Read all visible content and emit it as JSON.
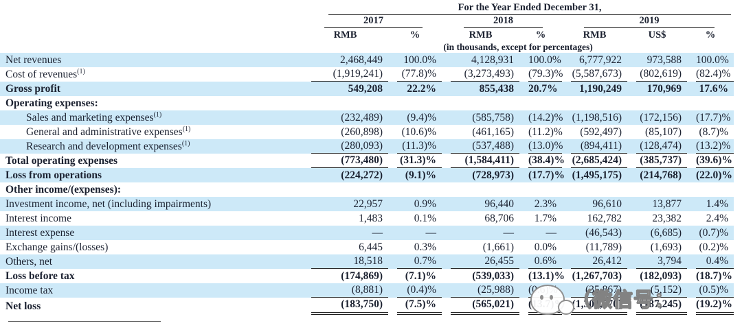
{
  "table": {
    "title": "For the Year Ended December 31,",
    "unit_note": "(in thousands, except for percentages)",
    "year_groups": [
      {
        "year": "2017",
        "cols": [
          "RMB",
          "%"
        ]
      },
      {
        "year": "2018",
        "cols": [
          "RMB",
          "%"
        ]
      },
      {
        "year": "2019",
        "cols": [
          "RMB",
          "US$",
          "%"
        ]
      }
    ],
    "rows": [
      {
        "label": "Net revenues",
        "sup": "",
        "bold": false,
        "indent": false,
        "shade": true,
        "rule": "none",
        "values": [
          "2,468,449",
          "100.0%",
          "4,128,931",
          "100.0%",
          "6,777,922",
          "973,588",
          "100.0%"
        ]
      },
      {
        "label": "Cost of revenues",
        "sup": "(1)",
        "bold": false,
        "indent": false,
        "shade": false,
        "rule": "single",
        "values": [
          "(1,919,241)",
          "(77.8)%",
          "(3,273,493)",
          "(79.3)%",
          "(5,587,673)",
          "(802,619)",
          "(82.4)%"
        ]
      },
      {
        "label": "Gross profit",
        "sup": "",
        "bold": true,
        "indent": false,
        "shade": true,
        "rule": "none",
        "values": [
          "549,208",
          "22.2%",
          "855,438",
          "20.7%",
          "1,190,249",
          "170,969",
          "17.6%"
        ]
      },
      {
        "label": "Operating expenses:",
        "sup": "",
        "bold": true,
        "indent": false,
        "shade": false,
        "rule": "none",
        "values": [
          "",
          "",
          "",
          "",
          "",
          "",
          ""
        ]
      },
      {
        "label": "Sales and marketing expenses",
        "sup": "(1)",
        "bold": false,
        "indent": true,
        "shade": true,
        "rule": "none",
        "values": [
          "(232,489)",
          "(9.4)%",
          "(585,758)",
          "(14.2)%",
          "(1,198,516)",
          "(172,156)",
          "(17.7)%"
        ]
      },
      {
        "label": "General and administrative expenses",
        "sup": "(1)",
        "bold": false,
        "indent": true,
        "shade": false,
        "rule": "none",
        "values": [
          "(260,898)",
          "(10.6)%",
          "(461,165)",
          "(11.2)%",
          "(592,497)",
          "(85,107)",
          "(8.7)%"
        ]
      },
      {
        "label": "Research and development expenses",
        "sup": "(1)",
        "bold": false,
        "indent": true,
        "shade": true,
        "rule": "single",
        "values": [
          "(280,093)",
          "(11.3)%",
          "(537,488)",
          "(13.0)%",
          "(894,411)",
          "(128,474)",
          "(13.2)%"
        ]
      },
      {
        "label": "Total operating expenses",
        "sup": "",
        "bold": true,
        "indent": false,
        "shade": false,
        "rule": "single",
        "values": [
          "(773,480)",
          "(31.3)%",
          "(1,584,411)",
          "(38.4)%",
          "(2,685,424)",
          "(385,737)",
          "(39.6)%"
        ]
      },
      {
        "label": "Loss from operations",
        "sup": "",
        "bold": true,
        "indent": false,
        "shade": true,
        "rule": "none",
        "values": [
          "(224,272)",
          "(9.1)%",
          "(728,973)",
          "(17.7)%",
          "(1,495,175)",
          "(214,768)",
          "(22.0)%"
        ]
      },
      {
        "label": "Other income/(expenses):",
        "sup": "",
        "bold": true,
        "indent": false,
        "shade": false,
        "rule": "none",
        "values": [
          "",
          "",
          "",
          "",
          "",
          "",
          ""
        ]
      },
      {
        "label": "Investment income, net (including impairments)",
        "sup": "",
        "bold": false,
        "indent": false,
        "shade": true,
        "rule": "none",
        "values": [
          "22,957",
          "0.9%",
          "96,440",
          "2.3%",
          "96,610",
          "13,877",
          "1.4%"
        ]
      },
      {
        "label": "Interest income",
        "sup": "",
        "bold": false,
        "indent": false,
        "shade": false,
        "rule": "none",
        "values": [
          "1,483",
          "0.1%",
          "68,706",
          "1.7%",
          "162,782",
          "23,382",
          "2.4%"
        ]
      },
      {
        "label": "Interest expense",
        "sup": "",
        "bold": false,
        "indent": false,
        "shade": true,
        "rule": "none",
        "values": [
          "—",
          "—",
          "—",
          "—",
          "(46,543)",
          "(6,685)",
          "(0.7)%"
        ]
      },
      {
        "label": "Exchange gains/(losses)",
        "sup": "",
        "bold": false,
        "indent": false,
        "shade": false,
        "rule": "none",
        "values": [
          "6,445",
          "0.3%",
          "(1,661)",
          "0.0%",
          "(11,789)",
          "(1,693)",
          "(0.2)%"
        ]
      },
      {
        "label": "Others, net",
        "sup": "",
        "bold": false,
        "indent": false,
        "shade": true,
        "rule": "single",
        "values": [
          "18,518",
          "0.7%",
          "26,455",
          "0.6%",
          "26,412",
          "3,794",
          "0.4%"
        ]
      },
      {
        "label": "Loss before tax",
        "sup": "",
        "bold": true,
        "indent": false,
        "shade": false,
        "rule": "none",
        "values": [
          "(174,869)",
          "(7.1)%",
          "(539,033)",
          "(13.1)%",
          "(1,267,703)",
          "(182,093)",
          "(18.7)%"
        ]
      },
      {
        "label": "Income tax",
        "sup": "",
        "bold": false,
        "indent": false,
        "shade": true,
        "rule": "single",
        "values": [
          "(8,881)",
          "(0.4)%",
          "(25,988)",
          "(0.6)%",
          "(35,867)",
          "(5,152)",
          "(0.5)%"
        ]
      },
      {
        "label": "Net loss",
        "sup": "",
        "bold": true,
        "indent": false,
        "shade": false,
        "rule": "double",
        "values": [
          "(183,750)",
          "(7.5)%",
          "(565,021)",
          "(13.7)%",
          "(1,303,570)",
          "(187,245)",
          "(19.2)%"
        ]
      }
    ]
  },
  "watermark": {
    "icon": "wechat-icon",
    "text": "（微信号："
  },
  "colors": {
    "stripe": "#cde9f8",
    "text": "#1b2130",
    "rule": "#2a2a2a"
  }
}
